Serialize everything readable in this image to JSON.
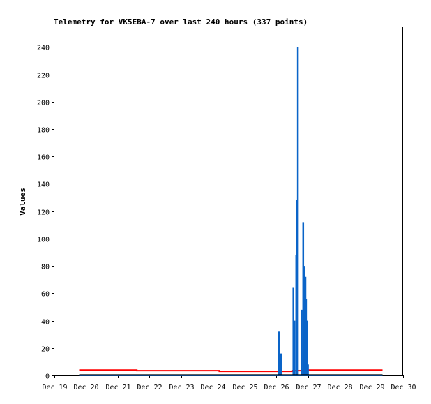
{
  "chart_data": {
    "type": "line",
    "title": "Telemetry for VK5EBA-7 over last 240 hours (337 points)",
    "xlabel": "",
    "ylabel": "Values",
    "x_ticks": [
      "Dec 19",
      "Dec 20",
      "Dec 21",
      "Dec 22",
      "Dec 23",
      "Dec 24",
      "Dec 25",
      "Dec 26",
      "Dec 27",
      "Dec 28",
      "Dec 29",
      "Dec 30"
    ],
    "xlim": [
      0,
      11
    ],
    "y_ticks": [
      "0",
      "20",
      "40",
      "60",
      "80",
      "100",
      "120",
      "140",
      "160",
      "180",
      "200",
      "220",
      "240"
    ],
    "ylim": [
      0,
      255
    ],
    "grid": false,
    "series": [
      {
        "color": "#ff0000",
        "style": "step",
        "x": [
          0.78,
          2.6,
          5.2,
          7.5,
          8.0,
          8.45,
          10.35
        ],
        "values": [
          4,
          3.5,
          3,
          3.5,
          4,
          4,
          4
        ]
      },
      {
        "color": "#0a64c8",
        "style": "spikes",
        "x": [
          0.78,
          10.35
        ],
        "values": [
          0,
          0
        ],
        "spikes": [
          {
            "x": 7.08,
            "y": 32
          },
          {
            "x": 7.15,
            "y": 16
          },
          {
            "x": 7.54,
            "y": 64
          },
          {
            "x": 7.57,
            "y": 40
          },
          {
            "x": 7.63,
            "y": 88
          },
          {
            "x": 7.66,
            "y": 128
          },
          {
            "x": 7.68,
            "y": 240
          },
          {
            "x": 7.8,
            "y": 48
          },
          {
            "x": 7.85,
            "y": 112
          },
          {
            "x": 7.89,
            "y": 80
          },
          {
            "x": 7.92,
            "y": 72
          },
          {
            "x": 7.94,
            "y": 56
          },
          {
            "x": 7.96,
            "y": 40
          },
          {
            "x": 7.98,
            "y": 24
          },
          {
            "x": 8.0,
            "y": 8
          }
        ]
      },
      {
        "color": "#000000",
        "style": "step",
        "x": [
          0.78,
          10.35
        ],
        "values": [
          0.3,
          0.3
        ]
      }
    ]
  }
}
